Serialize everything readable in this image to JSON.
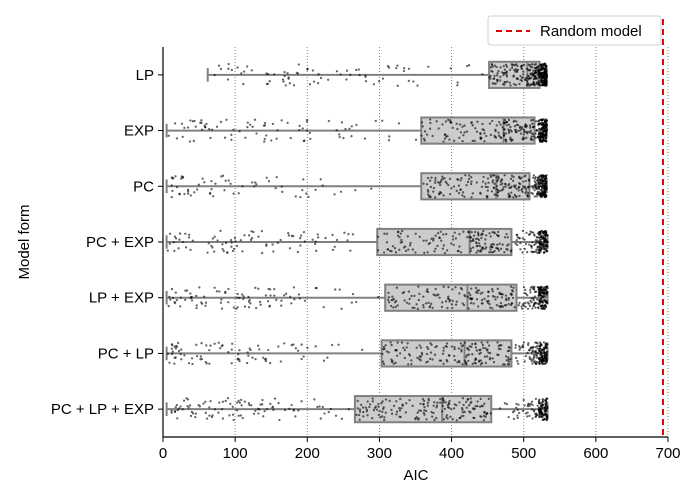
{
  "chart_data": {
    "type": "box",
    "orientation": "horizontal",
    "xlabel": "AIC",
    "ylabel": "Model form",
    "xlim": [
      0,
      700
    ],
    "xticks": [
      0,
      100,
      200,
      300,
      400,
      500,
      600,
      700
    ],
    "grid": "vertical dotted",
    "categories": [
      "LP",
      "EXP",
      "PC",
      "PC + EXP",
      "LP + EXP",
      "PC + LP",
      "PC + LP + EXP"
    ],
    "boxes": [
      {
        "label": "LP",
        "min": 62,
        "q1": 452,
        "median": 505,
        "q3": 522,
        "max": 532
      },
      {
        "label": "EXP",
        "min": 5,
        "q1": 358,
        "median": 472,
        "q3": 515,
        "max": 532
      },
      {
        "label": "PC",
        "min": 5,
        "q1": 358,
        "median": 462,
        "q3": 508,
        "max": 532
      },
      {
        "label": "PC + EXP",
        "min": 5,
        "q1": 297,
        "median": 425,
        "q3": 483,
        "max": 533
      },
      {
        "label": "LP + EXP",
        "min": 5,
        "q1": 308,
        "median": 422,
        "q3": 490,
        "max": 533
      },
      {
        "label": "PC + LP",
        "min": 5,
        "q1": 303,
        "median": 418,
        "q3": 483,
        "max": 533
      },
      {
        "label": "PC + LP + EXP",
        "min": 5,
        "q1": 266,
        "median": 387,
        "q3": 455,
        "max": 533
      }
    ],
    "reference_line": {
      "x": 693,
      "label": "Random model",
      "color": "#dd0000",
      "style": "dashed"
    },
    "legend": {
      "position": "top-right",
      "entries": [
        "Random model"
      ]
    },
    "colors": {
      "box_fill": "#cccccc",
      "box_edge": "#808080",
      "points": "#000000"
    }
  }
}
